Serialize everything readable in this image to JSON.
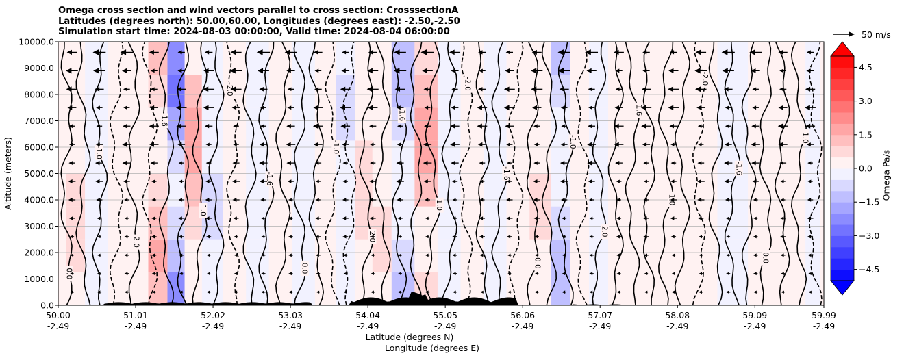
{
  "title": {
    "line1": "Omega cross section and wind vectors parallel to cross section: CrosssectionA",
    "line2": "Latitudes (degrees north): 50.00,60.00, Longitudes (degrees east): -2.50,-2.50",
    "line3": "Simulation start time: 2024-08-03 00:00:00, Valid time: 2024-08-04 06:00:00"
  },
  "chart_data": {
    "type": "heatmap",
    "xlabel_1": "Latitude (degrees N)",
    "xlabel_2": "Longitude (degrees E)",
    "ylabel": "Altitude (meters)",
    "ylim": [
      0,
      10000
    ],
    "yticks": [
      {
        "value": 0,
        "label": "0.0"
      },
      {
        "value": 1000,
        "label": "1000.0"
      },
      {
        "value": 2000,
        "label": "2000.0"
      },
      {
        "value": 3000,
        "label": "3000.0"
      },
      {
        "value": 4000,
        "label": "4000.0"
      },
      {
        "value": 5000,
        "label": "5000.0"
      },
      {
        "value": 6000,
        "label": "6000.0"
      },
      {
        "value": 7000,
        "label": "7000.0"
      },
      {
        "value": 8000,
        "label": "8000.0"
      },
      {
        "value": 9000,
        "label": "9000.0"
      },
      {
        "value": 10000,
        "label": "10000.0"
      }
    ],
    "xlim": [
      50.0,
      59.99
    ],
    "xticks": [
      {
        "value": 50.0,
        "lat": "50.00",
        "lon": "-2.49"
      },
      {
        "value": 51.01,
        "lat": "51.01",
        "lon": "-2.49"
      },
      {
        "value": 52.02,
        "lat": "52.02",
        "lon": "-2.49"
      },
      {
        "value": 53.03,
        "lat": "53.03",
        "lon": "-2.49"
      },
      {
        "value": 54.04,
        "lat": "54.04",
        "lon": "-2.49"
      },
      {
        "value": 55.05,
        "lat": "55.05",
        "lon": "-2.49"
      },
      {
        "value": 56.06,
        "lat": "56.06",
        "lon": "-2.49"
      },
      {
        "value": 57.07,
        "lat": "57.07",
        "lon": "-2.49"
      },
      {
        "value": 58.08,
        "lat": "58.08",
        "lon": "-2.49"
      },
      {
        "value": 59.09,
        "lat": "59.09",
        "lon": "-2.49"
      },
      {
        "value": 59.99,
        "lat": "59.99",
        "lon": "-2.49"
      }
    ],
    "grid": true,
    "colorbar": {
      "label": "Omega Pa/s",
      "range": [
        -5.0,
        5.0
      ],
      "ticks": [
        {
          "value": 4.5,
          "label": "4.5"
        },
        {
          "value": 3.0,
          "label": "3.0"
        },
        {
          "value": 1.5,
          "label": "1.5"
        },
        {
          "value": 0.0,
          "label": "0.0"
        },
        {
          "value": -1.5,
          "label": "−1.5"
        },
        {
          "value": -3.0,
          "label": "−3.0"
        },
        {
          "value": -4.5,
          "label": "−4.5"
        }
      ],
      "levels": 20,
      "colormap": "bwr"
    },
    "reference_vector": {
      "value": 50,
      "label": "50 m/s"
    },
    "omega_columns": [
      {
        "lat": 50.2,
        "omega": 0.8
      },
      {
        "lat": 50.5,
        "omega": -0.3
      },
      {
        "lat": 50.8,
        "omega": 0.4
      },
      {
        "lat": 51.05,
        "omega": 0.5
      },
      {
        "lat": 51.3,
        "omega": 1.6
      },
      {
        "lat": 51.55,
        "omega": -2.6
      },
      {
        "lat": 51.75,
        "omega": 1.8
      },
      {
        "lat": 52.0,
        "omega": -0.6
      },
      {
        "lat": 52.3,
        "omega": 0.4
      },
      {
        "lat": 52.6,
        "omega": -0.5
      },
      {
        "lat": 52.9,
        "omega": 0.2
      },
      {
        "lat": 53.2,
        "omega": -0.4
      },
      {
        "lat": 53.5,
        "omega": 0.3
      },
      {
        "lat": 53.75,
        "omega": -0.6
      },
      {
        "lat": 54.0,
        "omega": 0.9
      },
      {
        "lat": 54.2,
        "omega": 0.6
      },
      {
        "lat": 54.5,
        "omega": -1.2
      },
      {
        "lat": 54.8,
        "omega": 1.8
      },
      {
        "lat": 55.1,
        "omega": -0.3
      },
      {
        "lat": 55.4,
        "omega": 0.5
      },
      {
        "lat": 55.7,
        "omega": -0.4
      },
      {
        "lat": 56.0,
        "omega": 0.4
      },
      {
        "lat": 56.3,
        "omega": 0.6
      },
      {
        "lat": 56.55,
        "omega": -1.2
      },
      {
        "lat": 56.8,
        "omega": 0.3
      },
      {
        "lat": 57.05,
        "omega": -0.4
      },
      {
        "lat": 57.3,
        "omega": 0.5
      },
      {
        "lat": 57.6,
        "omega": 0.2
      },
      {
        "lat": 58.0,
        "omega": 0.4
      },
      {
        "lat": 58.4,
        "omega": 0.3
      },
      {
        "lat": 58.8,
        "omega": -0.4
      },
      {
        "lat": 59.2,
        "omega": 0.2
      },
      {
        "lat": 59.6,
        "omega": 0.1
      },
      {
        "lat": 59.9,
        "omega": -0.2
      }
    ],
    "contour_labels": [
      "0.0",
      "1.0",
      "-1.0",
      "-2.0",
      "2.0",
      "-1.6",
      "1.6"
    ]
  }
}
